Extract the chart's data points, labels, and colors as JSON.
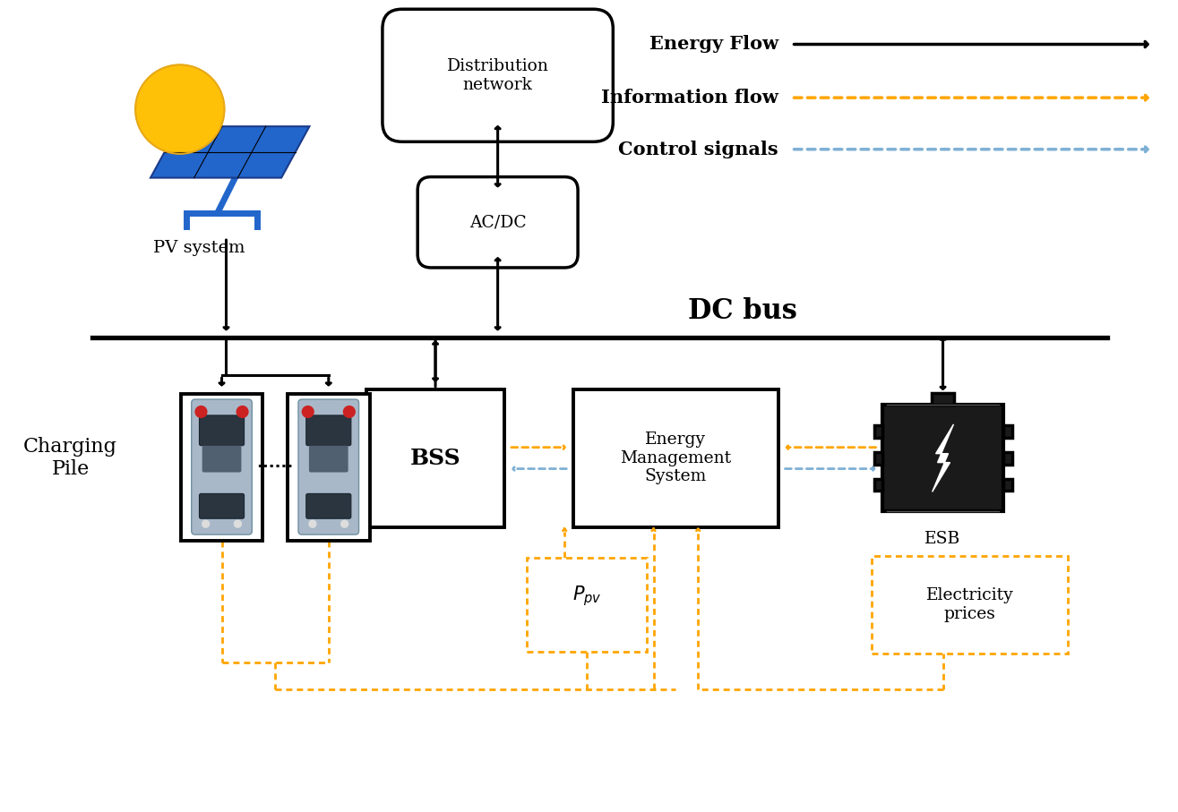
{
  "bg_color": "#ffffff",
  "EF": "#000000",
  "IF": "#FFA500",
  "CS": "#7EB0D5",
  "legend_labels": [
    "Energy Flow",
    "Information flow",
    "Control signals"
  ],
  "dc_bus_label": "DC bus",
  "pv_label": "PV system",
  "dist_label": "Distribution\nnetwork",
  "acdc_label": "AC/DC",
  "bss_label": "BSS",
  "ems_label": "Energy\nManagement\nSystem",
  "esb_label": "ESB",
  "charge_label": "Charging\nPile",
  "ppv_label": "$P_{pv}$",
  "elec_label": "Electricity\nprices"
}
